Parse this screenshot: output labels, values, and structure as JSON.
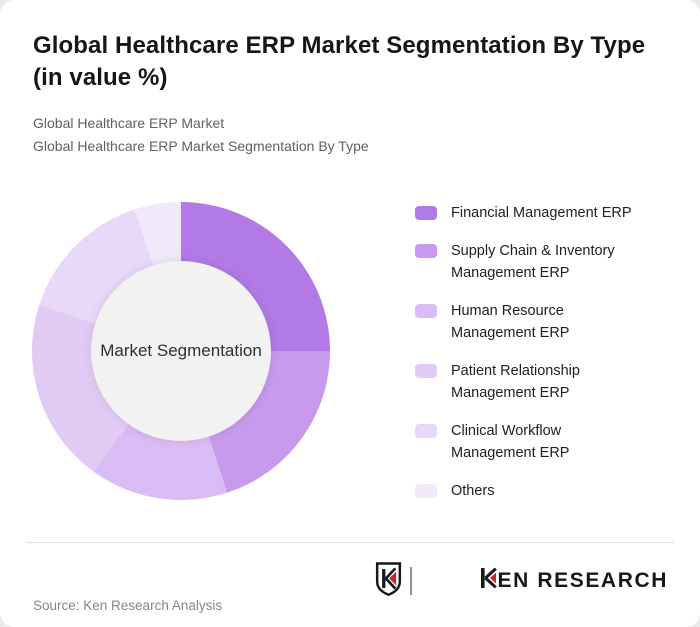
{
  "header": {
    "title": "Global Healthcare ERP Market Segmentation By Type (in value %)",
    "subtitle_line1": "Global Healthcare ERP Market",
    "subtitle_line2": "Global Healthcare ERP Market Segmentation By Type"
  },
  "chart_data": {
    "type": "pie",
    "donut": true,
    "title": "Global Healthcare ERP Market Segmentation By Type (in value %)",
    "unit": "value %",
    "center_label": "Market Segmentation",
    "categories": [
      "Financial Management ERP",
      "Supply Chain & Inventory Management ERP",
      "Human Resource Management ERP",
      "Patient Relationship Management ERP",
      "Clinical Workflow Management ERP",
      "Others"
    ],
    "values": [
      25,
      20,
      15,
      20,
      15,
      5
    ],
    "colors": [
      "#b17ae6",
      "#c79aed",
      "#d9bcf3",
      "#e1cbf5",
      "#e9d9f8",
      "#f1eafb"
    ],
    "start_angle_deg": 0,
    "center_bg": "#f2f2f3",
    "legend_position": "right"
  },
  "footer": {
    "source": "Source: Ken Research Analysis",
    "logo_text": "KEN RESEARCH",
    "logo_red": "#ce2127"
  }
}
